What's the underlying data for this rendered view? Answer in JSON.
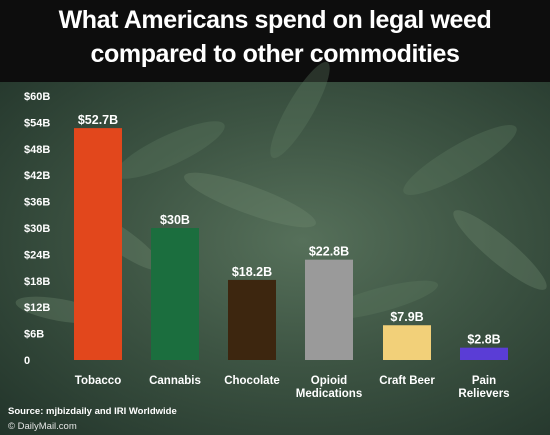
{
  "header": {
    "title_line1": "What Americans spend on legal weed",
    "title_line2": "compared to other commodities"
  },
  "footer": {
    "source": "Source: mjbizdaily and IRI Worldwide",
    "credit": "© DailyMail.com"
  },
  "chart_data": {
    "type": "bar",
    "title": "What Americans spend on legal weed compared to other commodities",
    "categories": [
      [
        "Tobacco"
      ],
      [
        "Cannabis"
      ],
      [
        "Chocolate"
      ],
      [
        "Opioid",
        "Medications"
      ],
      [
        "Craft Beer"
      ],
      [
        "Pain",
        "Relievers"
      ]
    ],
    "values": [
      52.7,
      30,
      18.2,
      22.8,
      7.9,
      2.8
    ],
    "value_labels": [
      "$52.7B",
      "$30B",
      "$18.2B",
      "$22.8B",
      "$7.9B",
      "$2.8B"
    ],
    "bar_colors": [
      "#e2471c",
      "#1b6e3e",
      "#3d260f",
      "#9a9a9a",
      "#f2d079",
      "#5a3dd6"
    ],
    "y_ticks": [
      0,
      6,
      12,
      18,
      24,
      30,
      36,
      42,
      48,
      54,
      60
    ],
    "y_tick_labels": [
      "0",
      "$6B",
      "$12B",
      "$18B",
      "$24B",
      "$30B",
      "$36B",
      "$42B",
      "$48B",
      "$54B",
      "$60B"
    ],
    "ylim": [
      0,
      60
    ],
    "xlabel": "",
    "ylabel": "",
    "grid": false,
    "legend": "none"
  }
}
